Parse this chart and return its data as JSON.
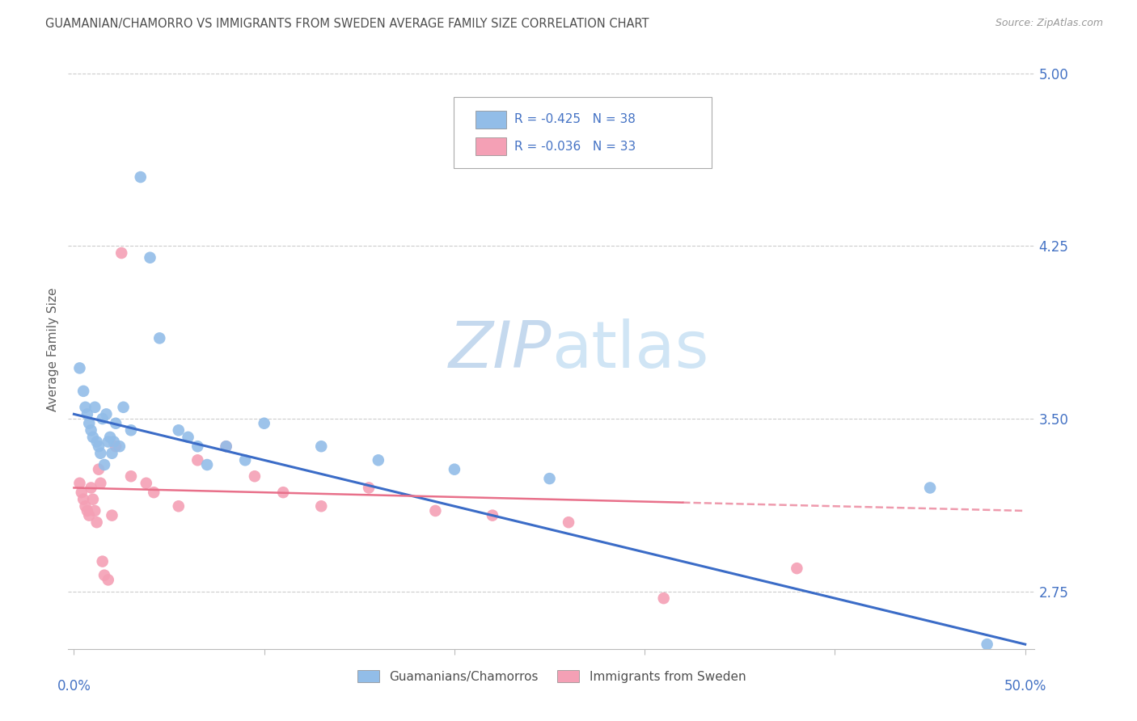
{
  "title": "GUAMANIAN/CHAMORRO VS IMMIGRANTS FROM SWEDEN AVERAGE FAMILY SIZE CORRELATION CHART",
  "source": "Source: ZipAtlas.com",
  "ylabel": "Average Family Size",
  "legend_label1": "Guamanians/Chamorros",
  "legend_label2": "Immigrants from Sweden",
  "color_blue": "#92BDE8",
  "color_pink": "#F4A0B5",
  "line_blue": "#3B6CC7",
  "line_pink": "#E8708A",
  "title_color": "#505050",
  "source_color": "#999999",
  "axis_label_color": "#4472C4",
  "watermark_color_zip": "#C5D9EE",
  "watermark_color_atlas": "#D0E5F5",
  "ymin": 2.5,
  "ymax": 5.1,
  "xmin": -0.003,
  "xmax": 0.505,
  "yticks": [
    2.75,
    3.5,
    4.25,
    5.0
  ],
  "blue_x": [
    0.003,
    0.005,
    0.006,
    0.007,
    0.008,
    0.009,
    0.01,
    0.011,
    0.012,
    0.013,
    0.014,
    0.015,
    0.016,
    0.017,
    0.018,
    0.019,
    0.02,
    0.021,
    0.022,
    0.024,
    0.026,
    0.03,
    0.035,
    0.04,
    0.045,
    0.055,
    0.06,
    0.065,
    0.07,
    0.08,
    0.09,
    0.1,
    0.13,
    0.16,
    0.2,
    0.25,
    0.45,
    0.48
  ],
  "blue_y": [
    3.72,
    3.62,
    3.55,
    3.52,
    3.48,
    3.45,
    3.42,
    3.55,
    3.4,
    3.38,
    3.35,
    3.5,
    3.3,
    3.52,
    3.4,
    3.42,
    3.35,
    3.4,
    3.48,
    3.38,
    3.55,
    3.45,
    4.55,
    4.2,
    3.85,
    3.45,
    3.42,
    3.38,
    3.3,
    3.38,
    3.32,
    3.48,
    3.38,
    3.32,
    3.28,
    3.24,
    3.2,
    2.52
  ],
  "pink_x": [
    0.003,
    0.004,
    0.005,
    0.006,
    0.007,
    0.008,
    0.009,
    0.01,
    0.011,
    0.012,
    0.013,
    0.014,
    0.015,
    0.016,
    0.018,
    0.02,
    0.022,
    0.025,
    0.03,
    0.038,
    0.042,
    0.055,
    0.065,
    0.08,
    0.095,
    0.11,
    0.13,
    0.155,
    0.19,
    0.22,
    0.26,
    0.31,
    0.38
  ],
  "pink_y": [
    3.22,
    3.18,
    3.15,
    3.12,
    3.1,
    3.08,
    3.2,
    3.15,
    3.1,
    3.05,
    3.28,
    3.22,
    2.88,
    2.82,
    2.8,
    3.08,
    3.38,
    4.22,
    3.25,
    3.22,
    3.18,
    3.12,
    3.32,
    3.38,
    3.25,
    3.18,
    3.12,
    3.2,
    3.1,
    3.08,
    3.05,
    2.72,
    2.85
  ]
}
